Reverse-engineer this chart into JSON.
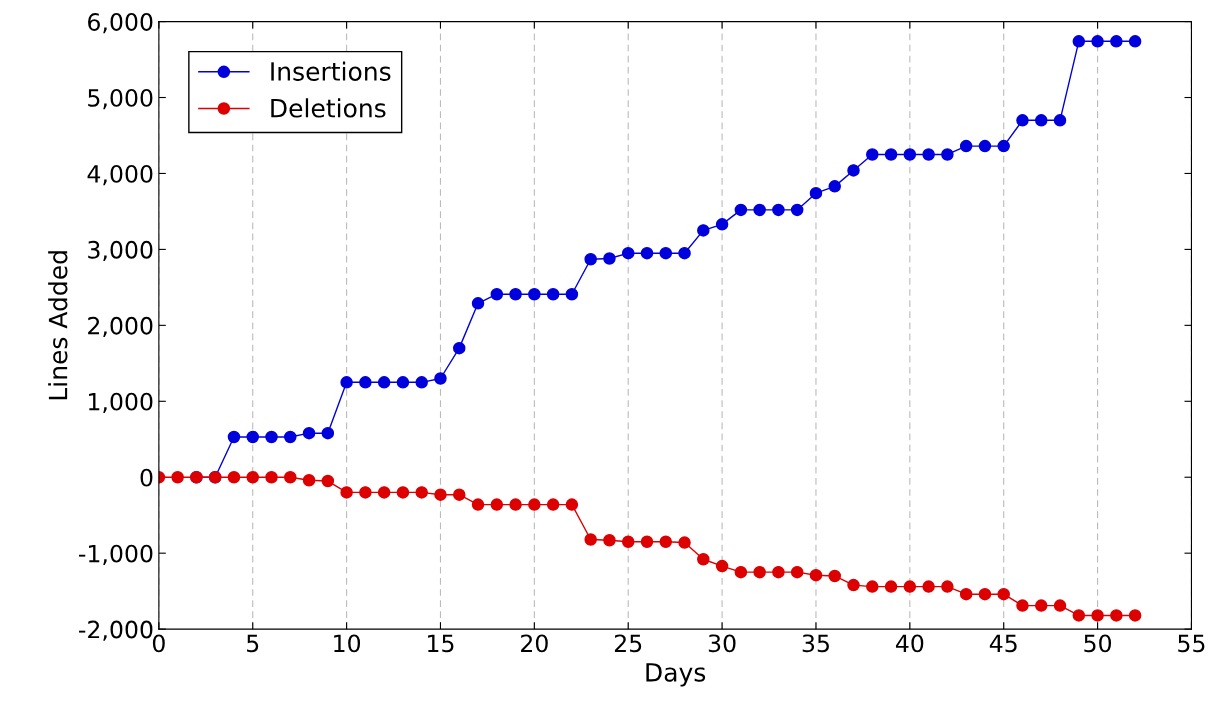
{
  "chart_data": {
    "type": "line",
    "xlabel": "Days",
    "ylabel": "Lines Added",
    "x": [
      0,
      1,
      2,
      3,
      4,
      5,
      6,
      7,
      8,
      9,
      10,
      11,
      12,
      13,
      14,
      15,
      16,
      17,
      18,
      19,
      20,
      21,
      22,
      23,
      24,
      25,
      26,
      27,
      28,
      29,
      30,
      31,
      32,
      33,
      34,
      35,
      36,
      37,
      38,
      39,
      40,
      41,
      42,
      43,
      44,
      45,
      46,
      47,
      48,
      49,
      50,
      51,
      52
    ],
    "series": [
      {
        "name": "Insertions",
        "color": "#0000dd",
        "values": [
          null,
          null,
          0,
          0,
          530,
          530,
          530,
          530,
          580,
          580,
          1250,
          1250,
          1250,
          1250,
          1250,
          1300,
          1700,
          2290,
          2410,
          2410,
          2410,
          2410,
          2410,
          2870,
          2880,
          2950,
          2950,
          2950,
          2950,
          3250,
          3330,
          3520,
          3520,
          3520,
          3520,
          3740,
          3830,
          4040,
          4250,
          4250,
          4250,
          4250,
          4250,
          4360,
          4360,
          4360,
          4700,
          4700,
          4700,
          5740,
          5740,
          5740,
          5740
        ]
      },
      {
        "name": "Deletions",
        "color": "#dd0000",
        "values": [
          0,
          0,
          0,
          0,
          0,
          0,
          0,
          0,
          -40,
          -50,
          -200,
          -200,
          -200,
          -200,
          -200,
          -230,
          -230,
          -360,
          -360,
          -360,
          -360,
          -360,
          -360,
          -820,
          -830,
          -850,
          -850,
          -850,
          -860,
          -1080,
          -1170,
          -1250,
          -1250,
          -1250,
          -1250,
          -1290,
          -1300,
          -1420,
          -1440,
          -1440,
          -1440,
          -1440,
          -1440,
          -1540,
          -1540,
          -1540,
          -1690,
          -1690,
          -1690,
          -1820,
          -1820,
          -1820,
          -1820
        ]
      }
    ],
    "xlim": [
      0,
      55
    ],
    "xticks": [
      0,
      5,
      10,
      15,
      20,
      25,
      30,
      35,
      40,
      45,
      50,
      55
    ],
    "ylim": [
      -2000,
      6000
    ],
    "yticks": [
      {
        "value": -2000,
        "label": "-2,000"
      },
      {
        "value": -1000,
        "label": "-1,000"
      },
      {
        "value": 0,
        "label": "0"
      },
      {
        "value": 1000,
        "label": "1,000"
      },
      {
        "value": 2000,
        "label": "2,000"
      },
      {
        "value": 3000,
        "label": "3,000"
      },
      {
        "value": 4000,
        "label": "4,000"
      },
      {
        "value": 5000,
        "label": "5,000"
      },
      {
        "value": 6000,
        "label": "6,000"
      }
    ],
    "grid": "x",
    "legend": "top left",
    "marker": "circle",
    "line_style": "solid"
  }
}
